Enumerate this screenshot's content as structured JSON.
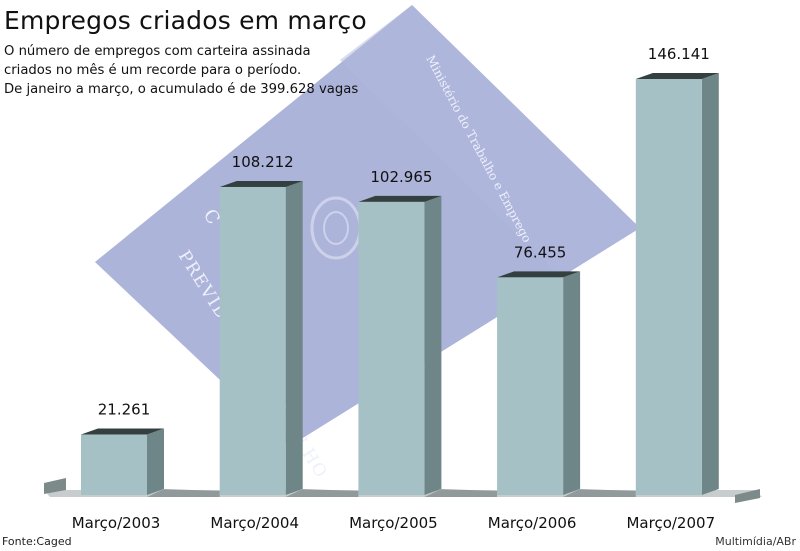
{
  "header": {
    "title": "Empregos criados em março",
    "subtitle_lines": [
      "O número de empregos com carteira assinada",
      "criados no mês é um recorde para o período.",
      "De janeiro a março, o acumulado é de 399.628 vagas"
    ]
  },
  "background_card": {
    "text_top": "Ministério do Trabalho e Emprego",
    "text_main": "PREVIDÊNCIA TRABALHO",
    "letter": "C"
  },
  "chart_data": {
    "type": "bar",
    "title": "Empregos criados em março",
    "categories": [
      "Março/2003",
      "Março/2004",
      "Março/2005",
      "Março/2006",
      "Março/2007"
    ],
    "values": [
      21261,
      108212,
      102965,
      76455,
      146141
    ],
    "value_labels": [
      "21.261",
      "108.212",
      "102.965",
      "76.455",
      "146.141"
    ],
    "ylim": [
      0,
      146141
    ],
    "grid": false,
    "legend": "none"
  },
  "footer": {
    "source": "Fonte:Caged",
    "credit": "Multimídia/ABr"
  },
  "colors": {
    "bar_front": "#a6c1c5",
    "bar_side": "#6f8688",
    "bar_top": "#344040",
    "floor": "#7d8a8a",
    "card": "#a4acd6",
    "card_text": "#eef0fb"
  }
}
